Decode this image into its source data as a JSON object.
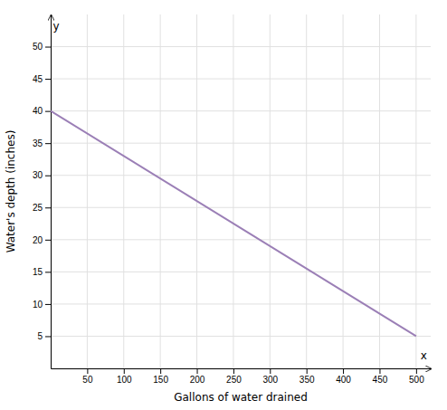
{
  "chart_data": {
    "type": "line",
    "x": [
      0,
      500
    ],
    "values": [
      40,
      5
    ],
    "color": "#9b7fb6",
    "xlabel": "Gallons of water drained",
    "ylabel": "Water's depth (inches)",
    "xlim": [
      0,
      520
    ],
    "ylim": [
      0,
      55
    ],
    "xticks": [
      50,
      100,
      150,
      200,
      250,
      300,
      350,
      400,
      450,
      500
    ],
    "yticks": [
      5,
      10,
      15,
      20,
      25,
      30,
      35,
      40,
      45,
      50
    ],
    "grid": true,
    "annotations": [
      {
        "text": "y",
        "x": 3,
        "y": 54
      },
      {
        "text": "x",
        "x": 515,
        "y": 1
      }
    ]
  }
}
